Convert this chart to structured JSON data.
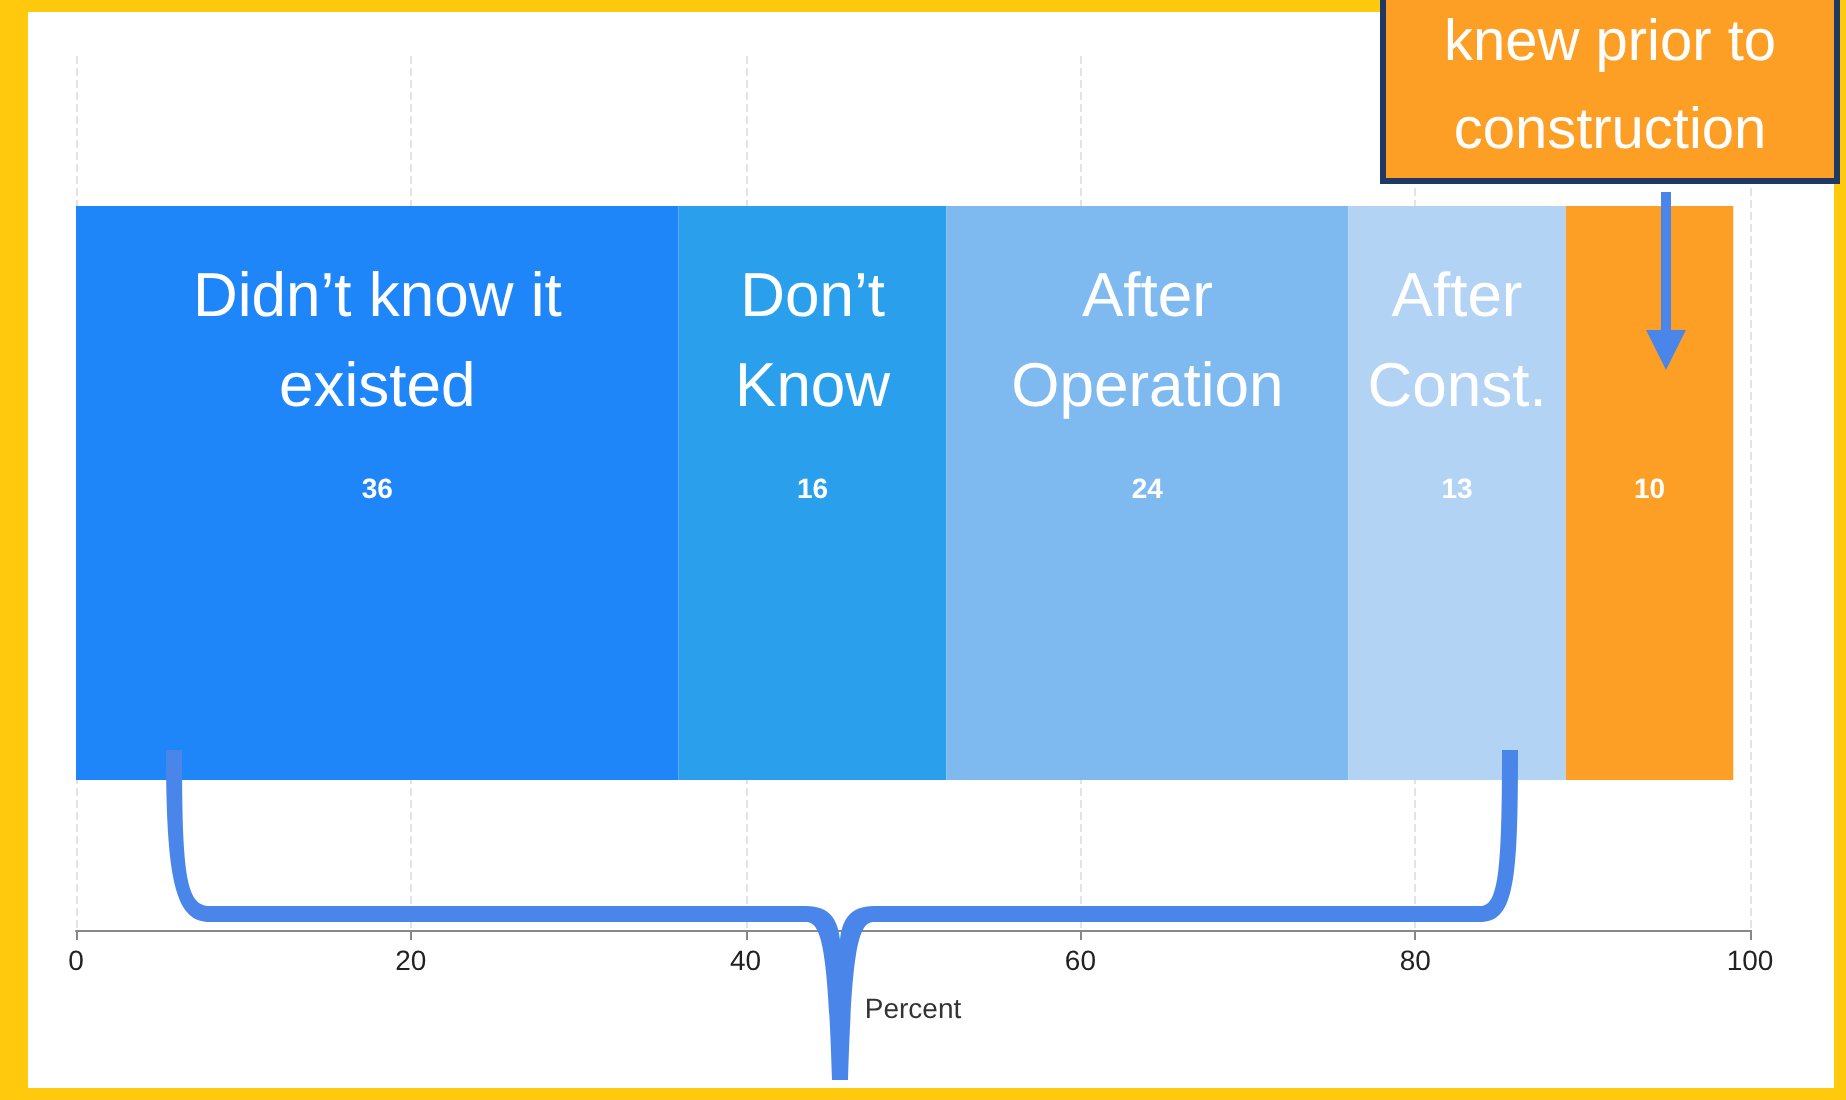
{
  "chart_data": {
    "type": "bar",
    "orientation": "horizontal",
    "stacked": true,
    "categories": [
      null
    ],
    "series": [
      {
        "name": "Didn’t know it existed",
        "color": "#1e86f8",
        "values": [
          36
        ]
      },
      {
        "name": "Don’t Know",
        "color": "#2aa0ec",
        "values": [
          16
        ]
      },
      {
        "name": "After Operation",
        "color": "#7eb9f0",
        "values": [
          24
        ]
      },
      {
        "name": "After Const.",
        "color": "#b3d3f5",
        "values": [
          13
        ]
      },
      {
        "color": "#fe9f25",
        "values": [
          10
        ]
      }
    ],
    "xlim": [
      0,
      100
    ],
    "xticks": [
      0,
      20,
      40,
      60,
      80,
      100
    ],
    "xlabel": "Percent",
    "grid": "x",
    "data_labels": true,
    "annotations": [
      "knew prior to construction"
    ]
  }
}
